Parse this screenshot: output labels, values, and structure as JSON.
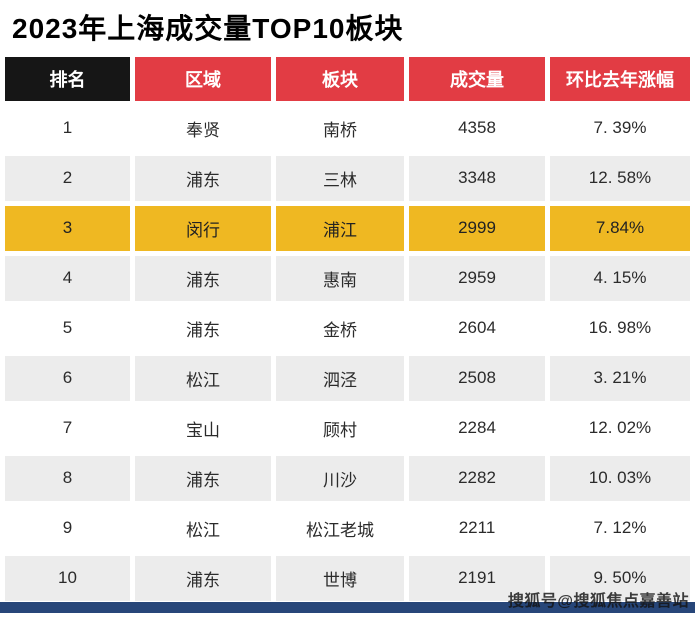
{
  "title": "2023年上海成交量TOP10板块",
  "watermark": "搜狐号@搜狐焦点嘉善站",
  "colors": {
    "header_red": "#e23c44",
    "header_black": "#161616",
    "highlight_yellow": "#efb822",
    "row_alt_gray": "#ececec",
    "bottom_bar_blue": "#274679"
  },
  "chart_data": {
    "type": "table",
    "title": "2023年上海成交量TOP10板块",
    "columns": [
      "排名",
      "区域",
      "板块",
      "成交量",
      "环比去年涨幅"
    ],
    "rows": [
      {
        "rank": "1",
        "region": "奉贤",
        "plate": "南桥",
        "volume": "4358",
        "change": "7. 39%",
        "highlight": false
      },
      {
        "rank": "2",
        "region": "浦东",
        "plate": "三林",
        "volume": "3348",
        "change": "12. 58%",
        "highlight": false
      },
      {
        "rank": "3",
        "region": "闵行",
        "plate": "浦江",
        "volume": "2999",
        "change": "7.84%",
        "highlight": true
      },
      {
        "rank": "4",
        "region": "浦东",
        "plate": "惠南",
        "volume": "2959",
        "change": "4. 15%",
        "highlight": false
      },
      {
        "rank": "5",
        "region": "浦东",
        "plate": "金桥",
        "volume": "2604",
        "change": "16. 98%",
        "highlight": false
      },
      {
        "rank": "6",
        "region": "松江",
        "plate": "泗泾",
        "volume": "2508",
        "change": "3. 21%",
        "highlight": false
      },
      {
        "rank": "7",
        "region": "宝山",
        "plate": "顾村",
        "volume": "2284",
        "change": "12. 02%",
        "highlight": false
      },
      {
        "rank": "8",
        "region": "浦东",
        "plate": "川沙",
        "volume": "2282",
        "change": "10. 03%",
        "highlight": false
      },
      {
        "rank": "9",
        "region": "松江",
        "plate": "松江老城",
        "volume": "2211",
        "change": "7. 12%",
        "highlight": false
      },
      {
        "rank": "10",
        "region": "浦东",
        "plate": "世博",
        "volume": "2191",
        "change": "9. 50%",
        "highlight": false
      }
    ],
    "highlighted_row_rank": "3",
    "layout": {
      "header_row": true,
      "grid": "white-gaps-between-cells",
      "zebra_striping": true
    }
  }
}
